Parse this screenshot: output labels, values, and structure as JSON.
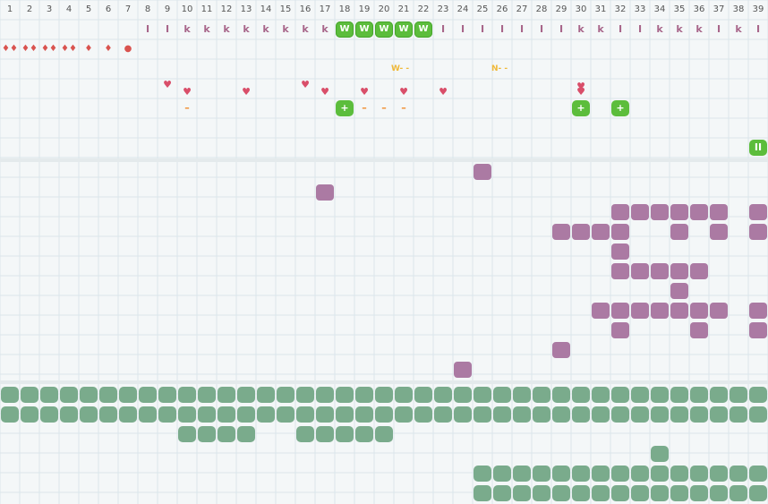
{
  "columns": [
    "1",
    "2",
    "3",
    "4",
    "5",
    "6",
    "7",
    "8",
    "9",
    "10",
    "11",
    "12",
    "13",
    "14",
    "15",
    "16",
    "17",
    "18",
    "19",
    "20",
    "21",
    "22",
    "23",
    "24",
    "25",
    "26",
    "27",
    "28",
    "29",
    "30",
    "31",
    "32",
    "33",
    "34",
    "35",
    "36",
    "37",
    "38",
    "39"
  ],
  "track_labels": [
    "",
    "",
    "",
    "",
    "",
    "",
    "",
    "I",
    "I",
    "k",
    "k",
    "k",
    "k",
    "k",
    "k",
    "k",
    "k",
    "W",
    "W",
    "W",
    "W",
    "W",
    "I",
    "I",
    "I",
    "I",
    "I",
    "I",
    "I",
    "k",
    "k",
    "I",
    "I",
    "k",
    "k",
    "k",
    "I",
    "k",
    "I"
  ],
  "drops_row": [
    "♦♦",
    "♦♦",
    "♦♦",
    "♦♦",
    "♦",
    "♦",
    "●"
  ],
  "markers": {
    "w": "W",
    "n": "N"
  },
  "row_labels": {
    "w_label": "W- -",
    "n_label": "N- -"
  },
  "heart_symbol": "♥",
  "plus_symbol": "+",
  "dash_symbol": "–",
  "pause_symbol": "II",
  "colors": {
    "purple": "#ab7aa3",
    "green": "#7aab8c",
    "badge_green": "#5cbd3c",
    "heart": "#d94e69"
  }
}
